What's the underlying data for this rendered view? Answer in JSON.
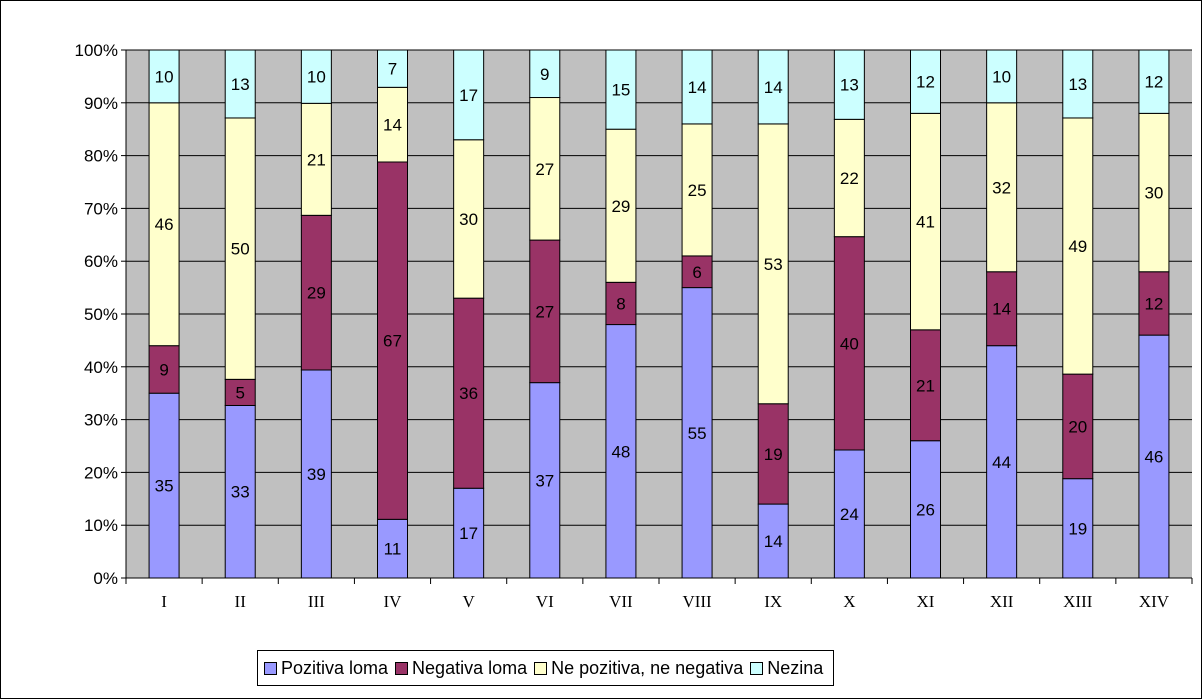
{
  "colors": {
    "plot_background": "#c0c0c0",
    "Pozitiva loma": "#9999ff",
    "Negativa loma": "#993366",
    "Ne pozitiva, ne negativa": "#ffffcc",
    "Nezina": "#ccffff"
  },
  "chart_data": {
    "type": "bar",
    "stacked": true,
    "percent": true,
    "categories": [
      "I",
      "II",
      "III",
      "IV",
      "V",
      "VI",
      "VII",
      "VIII",
      "IX",
      "X",
      "XI",
      "XII",
      "XIII",
      "XIV"
    ],
    "series": [
      {
        "name": "Pozitiva loma",
        "values": [
          35,
          33,
          39,
          11,
          17,
          37,
          48,
          55,
          14,
          24,
          26,
          44,
          19,
          46
        ]
      },
      {
        "name": "Negativa loma",
        "values": [
          9,
          5,
          29,
          67,
          36,
          27,
          8,
          6,
          19,
          40,
          21,
          14,
          20,
          12
        ]
      },
      {
        "name": "Ne pozitiva, ne negativa",
        "values": [
          46,
          50,
          21,
          14,
          30,
          27,
          29,
          25,
          53,
          22,
          41,
          32,
          49,
          30
        ]
      },
      {
        "name": "Nezina",
        "values": [
          10,
          13,
          10,
          7,
          17,
          9,
          15,
          14,
          14,
          13,
          12,
          10,
          13,
          12
        ]
      }
    ],
    "y_ticks": [
      "0%",
      "10%",
      "20%",
      "30%",
      "40%",
      "50%",
      "60%",
      "70%",
      "80%",
      "90%",
      "100%"
    ],
    "ylim": [
      0,
      100
    ],
    "grid": true,
    "legend_position": "bottom"
  }
}
